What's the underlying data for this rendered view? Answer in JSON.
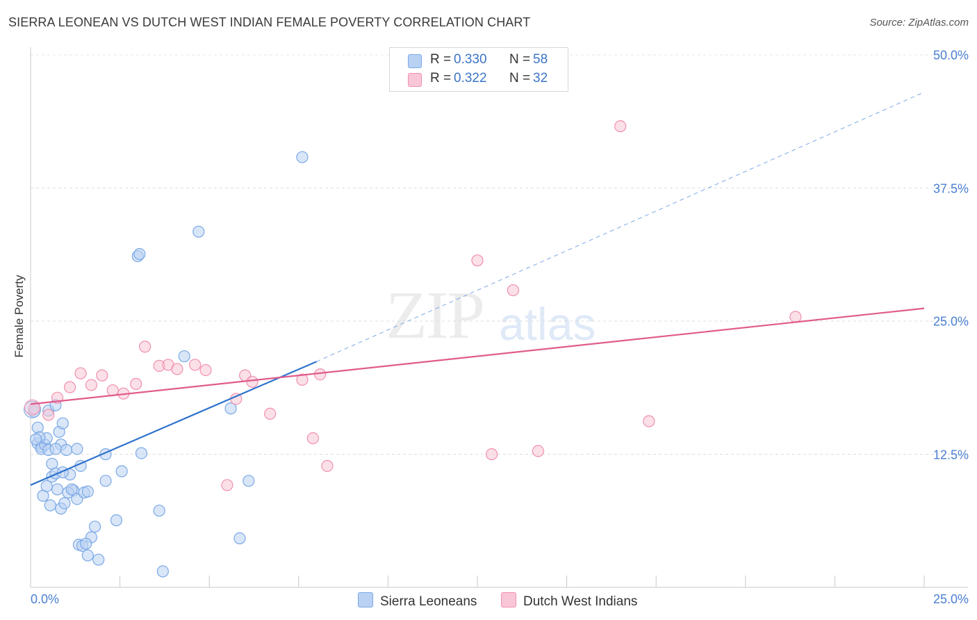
{
  "chart_data": {
    "type": "scatter",
    "title": "SIERRA LEONEAN VS DUTCH WEST INDIAN FEMALE POVERTY CORRELATION CHART",
    "source": "Source: ZipAtlas.com",
    "xlabel": "",
    "ylabel": "Female Poverty",
    "xlim": [
      0,
      25
    ],
    "ylim": [
      0,
      50
    ],
    "x_tick_labels": [
      "0.0%",
      "25.0%"
    ],
    "y_ticks": [
      {
        "value": 12.5,
        "label": "12.5%"
      },
      {
        "value": 25,
        "label": "25.0%"
      },
      {
        "value": 37.5,
        "label": "37.5%"
      },
      {
        "value": 50,
        "label": "50.0%"
      }
    ],
    "watermark": {
      "part1": "ZIP",
      "part2": "atlas"
    },
    "legend": [
      {
        "name": "Sierra Leoneans",
        "r_label": "R =",
        "r": "0.330",
        "n_label": "N =",
        "n": "58",
        "color": "#7aa8e6",
        "fill": "#b9d1f3",
        "line": "#2f73cc"
      },
      {
        "name": "Dutch West Indians",
        "r_label": "R =",
        "r": "0.322",
        "n_label": "N =",
        "n": "32",
        "color": "#f08fae",
        "fill": "#f8c6d6",
        "line": "#e05b8c"
      }
    ],
    "series": [
      {
        "name": "Sierra Leoneans",
        "trend": {
          "x0": 0,
          "y0": 9.6,
          "x1": 8.0,
          "y1": 21.2,
          "dash_x1": 25,
          "dash_y1": 46.5
        },
        "points": [
          [
            0.1,
            16.5
          ],
          [
            0.2,
            15.0
          ],
          [
            0.2,
            13.5
          ],
          [
            0.3,
            13.2
          ],
          [
            0.3,
            13.0
          ],
          [
            0.4,
            13.4
          ],
          [
            0.45,
            14.0
          ],
          [
            0.5,
            12.9
          ],
          [
            0.5,
            16.6
          ],
          [
            0.6,
            11.6
          ],
          [
            0.6,
            10.4
          ],
          [
            0.7,
            17.1
          ],
          [
            0.7,
            10.7
          ],
          [
            0.8,
            14.6
          ],
          [
            0.85,
            13.4
          ],
          [
            0.9,
            15.4
          ],
          [
            1.0,
            12.9
          ],
          [
            1.1,
            10.6
          ],
          [
            1.2,
            9.1
          ],
          [
            1.3,
            8.3
          ],
          [
            1.4,
            11.4
          ],
          [
            1.5,
            8.9
          ],
          [
            1.6,
            9.0
          ],
          [
            1.8,
            5.7
          ],
          [
            2.1,
            12.5
          ],
          [
            2.1,
            10.0
          ],
          [
            2.4,
            6.3
          ],
          [
            2.55,
            10.9
          ],
          [
            3.0,
            31.1
          ],
          [
            3.05,
            31.3
          ],
          [
            3.1,
            12.6
          ],
          [
            3.6,
            7.2
          ],
          [
            3.7,
            1.5
          ],
          [
            4.3,
            21.7
          ],
          [
            4.7,
            33.4
          ],
          [
            5.6,
            16.8
          ],
          [
            5.85,
            4.6
          ],
          [
            6.1,
            10.0
          ],
          [
            7.6,
            40.4
          ],
          [
            0.35,
            8.6
          ],
          [
            0.55,
            7.7
          ],
          [
            0.85,
            7.4
          ],
          [
            0.95,
            7.9
          ],
          [
            1.05,
            8.9
          ],
          [
            1.15,
            9.2
          ],
          [
            1.3,
            13.0
          ],
          [
            0.7,
            13.0
          ],
          [
            0.25,
            14.1
          ],
          [
            1.35,
            4.0
          ],
          [
            1.45,
            3.9
          ],
          [
            1.6,
            3.0
          ],
          [
            1.7,
            4.7
          ],
          [
            1.9,
            2.6
          ],
          [
            1.55,
            4.1
          ],
          [
            0.45,
            9.5
          ],
          [
            0.75,
            9.2
          ],
          [
            0.9,
            10.8
          ],
          [
            0.15,
            13.9
          ]
        ]
      },
      {
        "name": "Dutch West Indians",
        "trend": {
          "x0": 0,
          "y0": 17.2,
          "x1": 25,
          "y1": 26.2
        },
        "points": [
          [
            0.1,
            16.8
          ],
          [
            0.5,
            16.2
          ],
          [
            0.75,
            17.8
          ],
          [
            1.1,
            18.8
          ],
          [
            1.4,
            20.1
          ],
          [
            1.7,
            19.0
          ],
          [
            2.0,
            19.9
          ],
          [
            2.3,
            18.5
          ],
          [
            2.6,
            18.2
          ],
          [
            2.95,
            19.1
          ],
          [
            3.2,
            22.6
          ],
          [
            3.6,
            20.8
          ],
          [
            3.85,
            20.9
          ],
          [
            4.1,
            20.5
          ],
          [
            4.6,
            20.9
          ],
          [
            4.9,
            20.4
          ],
          [
            5.5,
            9.6
          ],
          [
            5.75,
            17.7
          ],
          [
            6.0,
            19.9
          ],
          [
            6.2,
            19.3
          ],
          [
            6.7,
            16.3
          ],
          [
            7.6,
            19.5
          ],
          [
            7.9,
            14.0
          ],
          [
            8.1,
            20.0
          ],
          [
            8.3,
            11.4
          ],
          [
            12.5,
            30.7
          ],
          [
            12.9,
            12.5
          ],
          [
            13.5,
            27.9
          ],
          [
            14.2,
            12.8
          ],
          [
            16.5,
            43.3
          ],
          [
            17.3,
            15.6
          ],
          [
            21.4,
            25.4
          ]
        ]
      }
    ]
  }
}
